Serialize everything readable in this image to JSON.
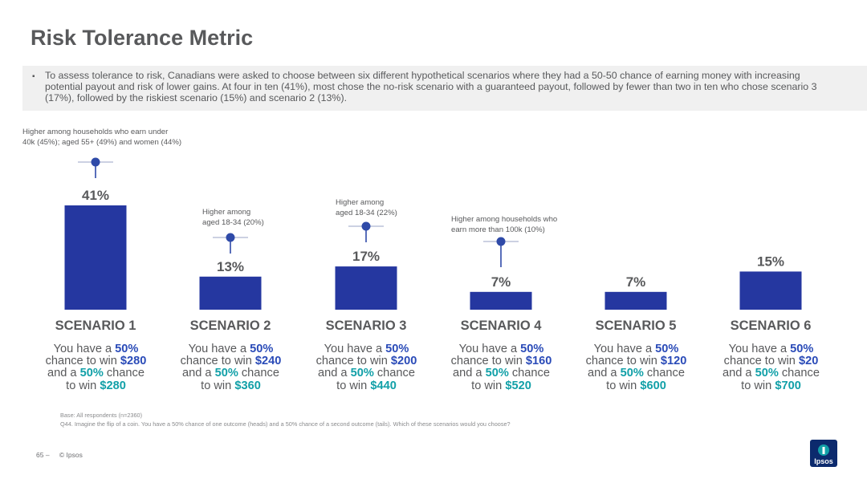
{
  "page": {
    "title": "Risk Tolerance Metric",
    "summary": "To assess tolerance to risk, Canadians were asked to choose between six different hypothetical scenarios where they had a 50-50 chance of earning money with increasing potential payout and risk of lower gains.   At four in ten (41%), most chose the no-risk scenario with a guaranteed payout, followed by fewer than two in ten who chose scenario 3 (17%), followed by the riskiest scenario (15%) and scenario 2 (13%).",
    "bullet": "▪",
    "base": "Base: All respondents (n=2360)",
    "question": "Q44. Imagine the flip of a coin. You have a 50% chance of one outcome (heads) and a 50% chance of a second outcome (tails).  Which of these scenarios would you choose?",
    "page_number": "65 –",
    "copyright": "© Ipsos",
    "logo_text": "Ipsos"
  },
  "colors": {
    "bar": "#2537a0",
    "pin": "#2f4aa8",
    "accent_blue": "#2a4bb8",
    "accent_teal": "#12a0a8",
    "text": "#58595b"
  },
  "chart_data": {
    "type": "bar",
    "categories": [
      "SCENARIO 1",
      "SCENARIO 2",
      "SCENARIO 3",
      "SCENARIO 4",
      "SCENARIO 5",
      "SCENARIO 6"
    ],
    "values": [
      41,
      13,
      17,
      7,
      7,
      15
    ],
    "value_labels": [
      "41%",
      "13%",
      "17%",
      "7%",
      "7%",
      "15%"
    ],
    "ylim": [
      0,
      45
    ],
    "grid": false,
    "legend": "none",
    "annotations": [
      {
        "category": "SCENARIO 1",
        "lines": [
          "Higher among households who earn under",
          "40k (45%); aged 55+ (49%) and women (44%)"
        ]
      },
      {
        "category": "SCENARIO 2",
        "lines": [
          "Higher among",
          "aged 18-34 (20%)"
        ]
      },
      {
        "category": "SCENARIO 3",
        "lines": [
          "Higher among",
          "aged 18-34 (22%)"
        ]
      },
      {
        "category": "SCENARIO 4",
        "lines": [
          "Higher among households who",
          "earn more than 100k (10%)"
        ]
      }
    ]
  },
  "scenarios": [
    {
      "title": "SCENARIO 1",
      "lines": [
        [
          {
            "t": "You have a "
          },
          {
            "t": "50%",
            "c": "b"
          }
        ],
        [
          {
            "t": "chance to win "
          },
          {
            "t": "$280",
            "c": "b"
          }
        ],
        [
          {
            "t": "and a "
          },
          {
            "t": "50%",
            "c": "t"
          },
          {
            "t": " chance"
          }
        ],
        [
          {
            "t": "to win "
          },
          {
            "t": "$280",
            "c": "t"
          }
        ]
      ]
    },
    {
      "title": "SCENARIO 2",
      "lines": [
        [
          {
            "t": "You have a "
          },
          {
            "t": "50%",
            "c": "b"
          }
        ],
        [
          {
            "t": "chance to win "
          },
          {
            "t": "$240",
            "c": "b"
          }
        ],
        [
          {
            "t": "and a "
          },
          {
            "t": "50%",
            "c": "t"
          },
          {
            "t": " chance"
          }
        ],
        [
          {
            "t": "to win "
          },
          {
            "t": "$360",
            "c": "t"
          }
        ]
      ]
    },
    {
      "title": "SCENARIO 3",
      "lines": [
        [
          {
            "t": "You have a "
          },
          {
            "t": "50%",
            "c": "b"
          }
        ],
        [
          {
            "t": "chance to win "
          },
          {
            "t": "$200",
            "c": "b"
          }
        ],
        [
          {
            "t": "and a "
          },
          {
            "t": "50%",
            "c": "t"
          },
          {
            "t": " chance"
          }
        ],
        [
          {
            "t": "to win "
          },
          {
            "t": "$440",
            "c": "t"
          }
        ]
      ]
    },
    {
      "title": "SCENARIO 4",
      "lines": [
        [
          {
            "t": "You have a "
          },
          {
            "t": "50%",
            "c": "b"
          }
        ],
        [
          {
            "t": "chance to win "
          },
          {
            "t": "$160",
            "c": "b"
          }
        ],
        [
          {
            "t": "and a "
          },
          {
            "t": "50%",
            "c": "t"
          },
          {
            "t": " chance"
          }
        ],
        [
          {
            "t": "to win "
          },
          {
            "t": "$520",
            "c": "t"
          }
        ]
      ]
    },
    {
      "title": "SCENARIO 5",
      "lines": [
        [
          {
            "t": "You have a "
          },
          {
            "t": "50%",
            "c": "b"
          }
        ],
        [
          {
            "t": "chance to win "
          },
          {
            "t": "$120",
            "c": "b"
          }
        ],
        [
          {
            "t": "and a "
          },
          {
            "t": "50%",
            "c": "t"
          },
          {
            "t": " chance"
          }
        ],
        [
          {
            "t": "to win "
          },
          {
            "t": "$600",
            "c": "t"
          }
        ]
      ]
    },
    {
      "title": "SCENARIO 6",
      "lines": [
        [
          {
            "t": "You have a "
          },
          {
            "t": "50%",
            "c": "b"
          }
        ],
        [
          {
            "t": "chance to win "
          },
          {
            "t": "$20",
            "c": "b"
          }
        ],
        [
          {
            "t": "and a "
          },
          {
            "t": "50%",
            "c": "t"
          },
          {
            "t": " chance"
          }
        ],
        [
          {
            "t": "to win "
          },
          {
            "t": "$700",
            "c": "t"
          }
        ]
      ]
    }
  ]
}
